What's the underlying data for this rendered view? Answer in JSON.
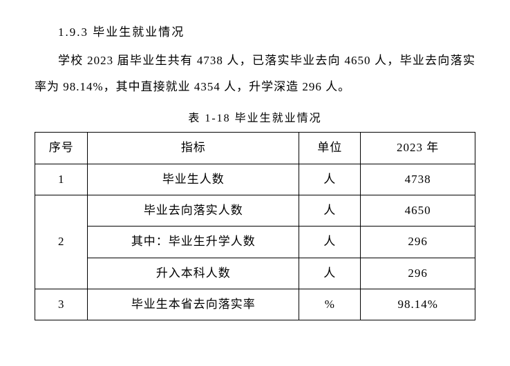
{
  "heading": "1.9.3 毕业生就业情况",
  "paragraph": "学校 2023 届毕业生共有 4738 人，已落实毕业去向 4650 人，毕业去向落实率为 98.14%，其中直接就业 4354 人，升学深造 296 人。",
  "table": {
    "caption": "表 1-18 毕业生就业情况",
    "columns": [
      "序号",
      "指标",
      "单位",
      "2023 年"
    ],
    "col_widths": [
      "12%",
      "48%",
      "14%",
      "26%"
    ],
    "rows": [
      {
        "seq": "1",
        "metric": "毕业生人数",
        "unit": "人",
        "value": "4738"
      },
      {
        "seq": "2",
        "metric": "毕业去向落实人数",
        "unit": "人",
        "value": "4650"
      },
      {
        "seq": "",
        "metric": "其中：毕业生升学人数",
        "unit": "人",
        "value": "296"
      },
      {
        "seq": "",
        "metric": "升入本科人数",
        "unit": "人",
        "value": "296"
      },
      {
        "seq": "3",
        "metric": "毕业生本省去向落实率",
        "unit": "%",
        "value": "98.14%"
      }
    ],
    "border_color": "#000000",
    "background_color": "#ffffff",
    "font_size": 17
  },
  "colors": {
    "text": "#000000",
    "background": "#ffffff"
  }
}
